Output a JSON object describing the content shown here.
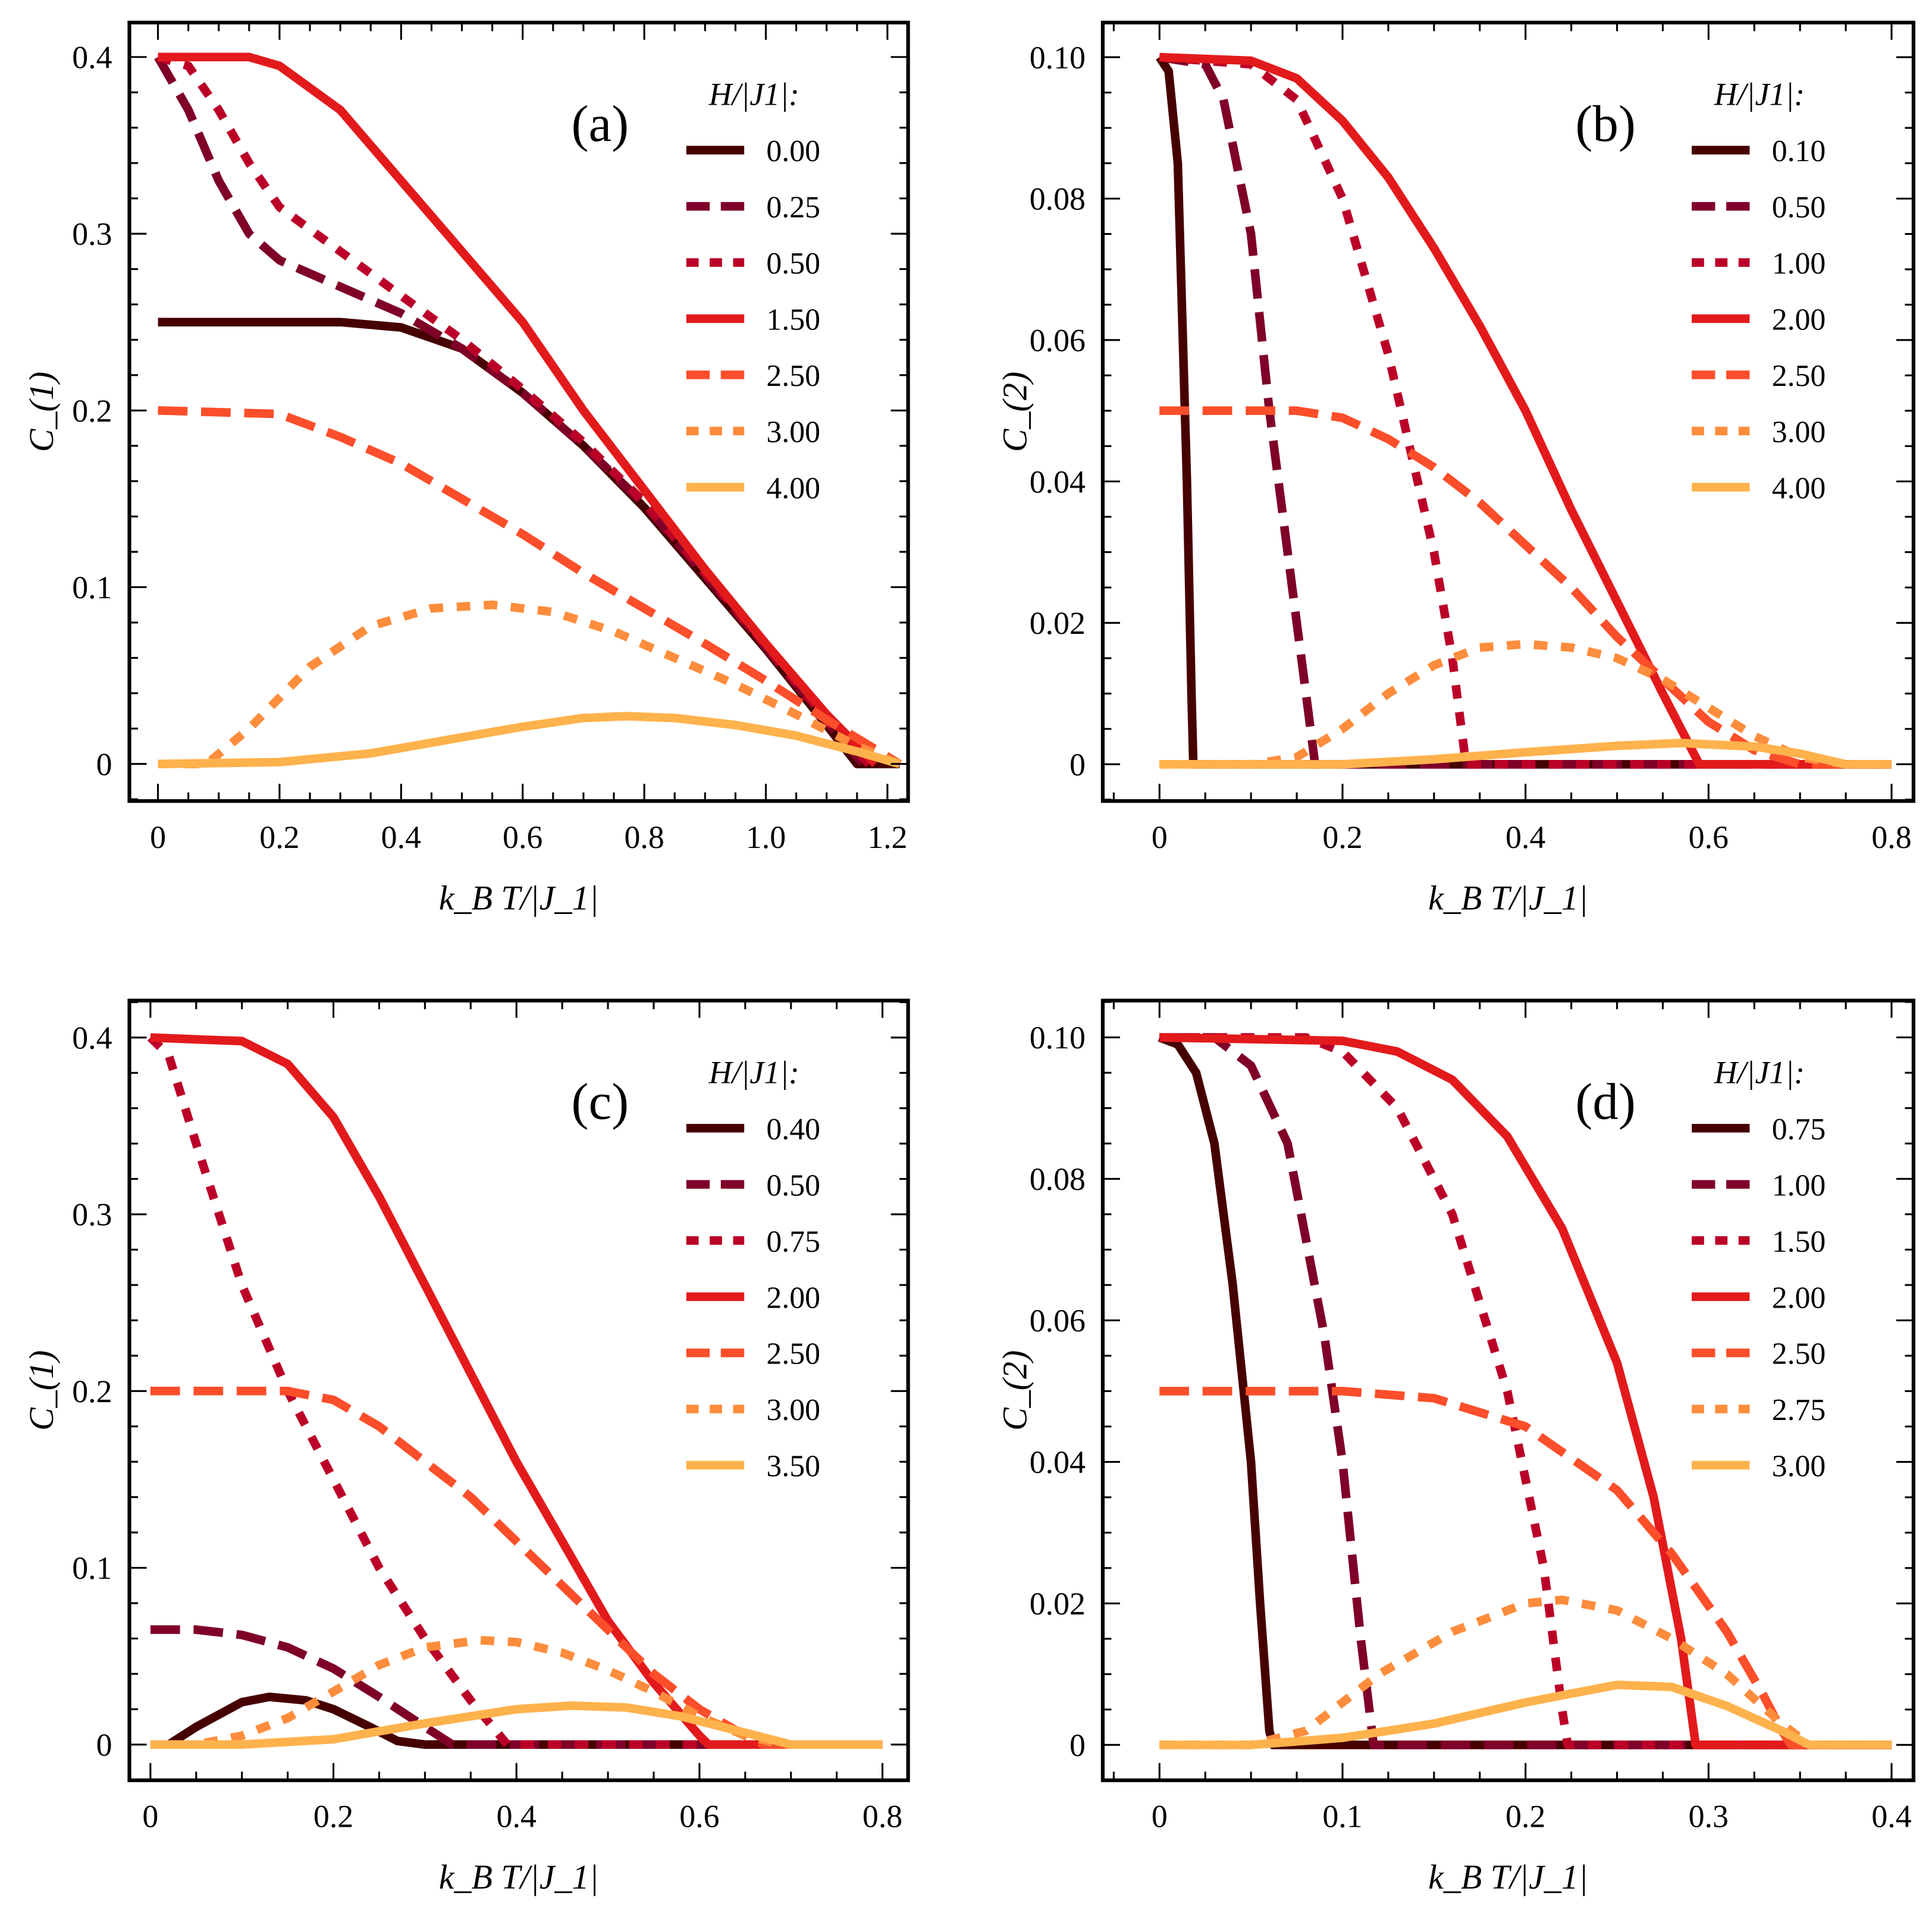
{
  "colors": {
    "axis": "#000000"
  },
  "chart_data": [
    {
      "type": "line",
      "panel_label": "(a)",
      "xlabel": "k_B T/|J_1|",
      "ylabel": "C_(1)",
      "xlim": [
        -0.047,
        1.234
      ],
      "ylim": [
        -0.021,
        0.4195
      ],
      "xticks": [
        0,
        0.2,
        0.4,
        0.6,
        0.8,
        1.0,
        1.2
      ],
      "xtick_labels": [
        "0",
        "0.2",
        "0.4",
        "0.6",
        "0.8",
        "1.0",
        "1.2"
      ],
      "xminor": 0.05,
      "yticks": [
        0,
        0.1,
        0.2,
        0.3,
        0.4
      ],
      "ytick_labels": [
        "0",
        "0.1",
        "0.2",
        "0.3",
        "0.4"
      ],
      "yminor": 0.02,
      "legend_title": "H/|J1|:",
      "legend_position": "top-right",
      "series": [
        {
          "name": "0.00",
          "color": "#460000",
          "style": "solid",
          "x": [
            0,
            0.3,
            0.4,
            0.5,
            0.6,
            0.7,
            0.8,
            0.9,
            1.0,
            1.1,
            1.15,
            1.22
          ],
          "y": [
            0.25,
            0.25,
            0.247,
            0.235,
            0.21,
            0.18,
            0.145,
            0.105,
            0.065,
            0.022,
            0,
            0
          ]
        },
        {
          "name": "0.25",
          "color": "#7f0028",
          "style": "dashed",
          "x": [
            0,
            0.05,
            0.1,
            0.15,
            0.2,
            0.3,
            0.4,
            0.5,
            0.6,
            0.7,
            0.8,
            0.9,
            1.0,
            1.1,
            1.16
          ],
          "y": [
            0.4,
            0.37,
            0.33,
            0.3,
            0.285,
            0.27,
            0.255,
            0.235,
            0.21,
            0.18,
            0.147,
            0.107,
            0.066,
            0.024,
            0
          ]
        },
        {
          "name": "0.50",
          "color": "#bb0028",
          "style": "dotted",
          "x": [
            0,
            0.05,
            0.1,
            0.15,
            0.2,
            0.3,
            0.4,
            0.5,
            0.6,
            0.7,
            0.8,
            0.9,
            1.0,
            1.1,
            1.17
          ],
          "y": [
            0.4,
            0.395,
            0.37,
            0.34,
            0.315,
            0.29,
            0.265,
            0.24,
            0.212,
            0.182,
            0.148,
            0.108,
            0.067,
            0.025,
            0
          ]
        },
        {
          "name": "1.50",
          "color": "#e31a1c",
          "style": "solid",
          "x": [
            0,
            0.15,
            0.2,
            0.3,
            0.4,
            0.5,
            0.6,
            0.7,
            0.8,
            0.9,
            1.0,
            1.1,
            1.18
          ],
          "y": [
            0.4,
            0.4,
            0.395,
            0.37,
            0.33,
            0.29,
            0.25,
            0.2,
            0.155,
            0.11,
            0.068,
            0.028,
            0
          ]
        },
        {
          "name": "2.50",
          "color": "#fc4e2a",
          "style": "dashed",
          "x": [
            0,
            0.2,
            0.3,
            0.4,
            0.5,
            0.6,
            0.7,
            0.8,
            0.9,
            1.0,
            1.1,
            1.22
          ],
          "y": [
            0.2,
            0.198,
            0.185,
            0.17,
            0.15,
            0.13,
            0.108,
            0.088,
            0.068,
            0.047,
            0.025,
            0
          ]
        },
        {
          "name": "3.00",
          "color": "#fd8d3c",
          "style": "dotted",
          "x": [
            0,
            0.08,
            0.15,
            0.25,
            0.35,
            0.45,
            0.55,
            0.65,
            0.75,
            0.85,
            0.95,
            1.05,
            1.15,
            1.22
          ],
          "y": [
            0,
            0,
            0.02,
            0.055,
            0.078,
            0.088,
            0.09,
            0.086,
            0.075,
            0.06,
            0.045,
            0.028,
            0.01,
            0
          ]
        },
        {
          "name": "4.00",
          "color": "#feb24c",
          "style": "solid",
          "x": [
            0,
            0.2,
            0.35,
            0.5,
            0.6,
            0.7,
            0.77,
            0.85,
            0.95,
            1.05,
            1.15,
            1.22
          ],
          "y": [
            0,
            0.001,
            0.006,
            0.015,
            0.021,
            0.026,
            0.027,
            0.026,
            0.022,
            0.016,
            0.007,
            0
          ]
        }
      ]
    },
    {
      "type": "line",
      "panel_label": "(b)",
      "xlabel": "k_B T/|J_1|",
      "ylabel": "C_(2)",
      "xlim": [
        -0.062,
        0.824
      ],
      "ylim": [
        -0.0052,
        0.1049
      ],
      "xticks": [
        0,
        0.2,
        0.4,
        0.6,
        0.8
      ],
      "xtick_labels": [
        "0",
        "0.2",
        "0.4",
        "0.6",
        "0.8"
      ],
      "xminor": 0.05,
      "yticks": [
        0,
        0.02,
        0.04,
        0.06,
        0.08,
        0.1
      ],
      "ytick_labels": [
        "0",
        "0.02",
        "0.04",
        "0.06",
        "0.08",
        "0.10"
      ],
      "yminor": 0.005,
      "legend_title": "H/|J1|:",
      "legend_position": "top-right",
      "series": [
        {
          "name": "0.10",
          "color": "#460000",
          "style": "solid",
          "x": [
            0,
            0.01,
            0.02,
            0.03,
            0.035,
            0.037,
            0.8
          ],
          "y": [
            0.1,
            0.098,
            0.085,
            0.04,
            0.01,
            0,
            0
          ]
        },
        {
          "name": "0.50",
          "color": "#7f0028",
          "style": "dashed",
          "x": [
            0,
            0.05,
            0.07,
            0.1,
            0.12,
            0.14,
            0.16,
            0.17,
            0.8
          ],
          "y": [
            0.1,
            0.099,
            0.094,
            0.075,
            0.05,
            0.03,
            0.01,
            0,
            0
          ]
        },
        {
          "name": "1.00",
          "color": "#bb0028",
          "style": "dotted",
          "x": [
            0,
            0.1,
            0.15,
            0.2,
            0.25,
            0.3,
            0.32,
            0.335,
            0.8
          ],
          "y": [
            0.1,
            0.099,
            0.094,
            0.08,
            0.058,
            0.03,
            0.015,
            0,
            0
          ]
        },
        {
          "name": "2.00",
          "color": "#e31a1c",
          "style": "solid",
          "x": [
            0,
            0.1,
            0.15,
            0.2,
            0.25,
            0.3,
            0.35,
            0.4,
            0.45,
            0.5,
            0.55,
            0.59,
            0.8
          ],
          "y": [
            0.1,
            0.0995,
            0.097,
            0.091,
            0.083,
            0.073,
            0.062,
            0.05,
            0.036,
            0.023,
            0.01,
            0,
            0
          ]
        },
        {
          "name": "2.50",
          "color": "#fc4e2a",
          "style": "dashed",
          "x": [
            0,
            0.15,
            0.2,
            0.25,
            0.3,
            0.35,
            0.4,
            0.45,
            0.5,
            0.55,
            0.6,
            0.65,
            0.7,
            0.8
          ],
          "y": [
            0.05,
            0.05,
            0.049,
            0.046,
            0.042,
            0.037,
            0.031,
            0.025,
            0.018,
            0.012,
            0.006,
            0.002,
            0,
            0
          ]
        },
        {
          "name": "3.00",
          "color": "#fd8d3c",
          "style": "dotted",
          "x": [
            0,
            0.1,
            0.15,
            0.2,
            0.25,
            0.3,
            0.35,
            0.4,
            0.45,
            0.5,
            0.55,
            0.6,
            0.65,
            0.7,
            0.75,
            0.8
          ],
          "y": [
            0,
            0,
            0.001,
            0.005,
            0.01,
            0.014,
            0.0165,
            0.017,
            0.0165,
            0.015,
            0.012,
            0.008,
            0.004,
            0.001,
            0,
            0
          ]
        },
        {
          "name": "4.00",
          "color": "#feb24c",
          "style": "solid",
          "x": [
            0,
            0.2,
            0.3,
            0.4,
            0.5,
            0.57,
            0.65,
            0.7,
            0.75,
            0.8
          ],
          "y": [
            0,
            0,
            0.0007,
            0.0017,
            0.0026,
            0.003,
            0.0025,
            0.0015,
            0,
            0
          ]
        }
      ]
    },
    {
      "type": "line",
      "panel_label": "(c)",
      "xlabel": "k_B T/|J_1|",
      "ylabel": "C_(1)",
      "xlim": [
        -0.023,
        0.828
      ],
      "ylim": [
        -0.0202,
        0.4209
      ],
      "xticks": [
        0,
        0.2,
        0.4,
        0.6,
        0.8
      ],
      "xtick_labels": [
        "0",
        "0.2",
        "0.4",
        "0.6",
        "0.8"
      ],
      "xminor": 0.05,
      "yticks": [
        0,
        0.1,
        0.2,
        0.3,
        0.4
      ],
      "ytick_labels": [
        "0",
        "0.1",
        "0.2",
        "0.3",
        "0.4"
      ],
      "yminor": 0.02,
      "legend_title": "H/|J1|:",
      "legend_position": "top-right",
      "series": [
        {
          "name": "0.40",
          "color": "#460000",
          "style": "solid",
          "x": [
            0,
            0.02,
            0.05,
            0.1,
            0.13,
            0.17,
            0.2,
            0.24,
            0.27,
            0.3,
            0.8
          ],
          "y": [
            0,
            0,
            0.01,
            0.024,
            0.027,
            0.025,
            0.02,
            0.01,
            0.002,
            0,
            0
          ]
        },
        {
          "name": "0.50",
          "color": "#7f0028",
          "style": "dashed",
          "x": [
            0,
            0.05,
            0.1,
            0.15,
            0.2,
            0.25,
            0.3,
            0.33,
            0.8
          ],
          "y": [
            0.065,
            0.065,
            0.062,
            0.055,
            0.043,
            0.027,
            0.01,
            0,
            0
          ]
        },
        {
          "name": "0.75",
          "color": "#bb0028",
          "style": "dotted",
          "x": [
            0,
            0.02,
            0.05,
            0.1,
            0.15,
            0.2,
            0.25,
            0.3,
            0.35,
            0.39,
            0.8
          ],
          "y": [
            0.4,
            0.39,
            0.34,
            0.26,
            0.2,
            0.15,
            0.1,
            0.06,
            0.025,
            0,
            0
          ]
        },
        {
          "name": "2.00",
          "color": "#e31a1c",
          "style": "solid",
          "x": [
            0,
            0.1,
            0.15,
            0.2,
            0.25,
            0.3,
            0.35,
            0.4,
            0.45,
            0.5,
            0.55,
            0.6,
            0.61,
            0.8
          ],
          "y": [
            0.4,
            0.398,
            0.385,
            0.355,
            0.31,
            0.26,
            0.21,
            0.16,
            0.115,
            0.07,
            0.035,
            0.005,
            0,
            0
          ]
        },
        {
          "name": "2.50",
          "color": "#fc4e2a",
          "style": "dashed",
          "x": [
            0,
            0.15,
            0.2,
            0.25,
            0.3,
            0.35,
            0.4,
            0.45,
            0.5,
            0.55,
            0.6,
            0.65,
            0.67,
            0.8
          ],
          "y": [
            0.2,
            0.2,
            0.195,
            0.18,
            0.16,
            0.14,
            0.115,
            0.09,
            0.065,
            0.04,
            0.02,
            0.005,
            0,
            0
          ]
        },
        {
          "name": "3.00",
          "color": "#fd8d3c",
          "style": "dotted",
          "x": [
            0,
            0.05,
            0.1,
            0.15,
            0.2,
            0.25,
            0.3,
            0.36,
            0.4,
            0.45,
            0.5,
            0.55,
            0.6,
            0.65,
            0.69,
            0.8
          ],
          "y": [
            0,
            0,
            0.005,
            0.015,
            0.03,
            0.045,
            0.055,
            0.059,
            0.058,
            0.052,
            0.042,
            0.03,
            0.016,
            0.005,
            0,
            0
          ]
        },
        {
          "name": "3.50",
          "color": "#feb24c",
          "style": "solid",
          "x": [
            0,
            0.1,
            0.2,
            0.3,
            0.4,
            0.46,
            0.52,
            0.58,
            0.64,
            0.7,
            0.8
          ],
          "y": [
            0,
            0,
            0.003,
            0.012,
            0.02,
            0.022,
            0.021,
            0.016,
            0.008,
            0,
            0
          ]
        }
      ]
    },
    {
      "type": "line",
      "panel_label": "(d)",
      "xlabel": "k_B T/|J_1|",
      "ylabel": "C_(2)",
      "xlim": [
        -0.031,
        0.412
      ],
      "ylim": [
        -0.005,
        0.1052
      ],
      "xticks": [
        0,
        0.1,
        0.2,
        0.3,
        0.4
      ],
      "xtick_labels": [
        "0",
        "0.1",
        "0.2",
        "0.3",
        "0.4"
      ],
      "xminor": 0.025,
      "yticks": [
        0,
        0.02,
        0.04,
        0.06,
        0.08,
        0.1
      ],
      "ytick_labels": [
        "0",
        "0.02",
        "0.04",
        "0.06",
        "0.08",
        "0.10"
      ],
      "yminor": 0.005,
      "legend_title": "H/|J1|:",
      "legend_position": "top-right",
      "series": [
        {
          "name": "0.75",
          "color": "#460000",
          "style": "solid",
          "x": [
            0,
            0.01,
            0.02,
            0.03,
            0.04,
            0.05,
            0.055,
            0.06,
            0.062,
            0.4
          ],
          "y": [
            0.1,
            0.099,
            0.095,
            0.085,
            0.065,
            0.04,
            0.02,
            0.002,
            0,
            0
          ]
        },
        {
          "name": "1.00",
          "color": "#7f0028",
          "style": "dashed",
          "x": [
            0,
            0.03,
            0.05,
            0.07,
            0.09,
            0.1,
            0.11,
            0.117,
            0.4
          ],
          "y": [
            0.1,
            0.1,
            0.096,
            0.085,
            0.058,
            0.04,
            0.015,
            0,
            0
          ]
        },
        {
          "name": "1.50",
          "color": "#bb0028",
          "style": "dotted",
          "x": [
            0,
            0.08,
            0.1,
            0.13,
            0.16,
            0.19,
            0.21,
            0.22,
            0.223,
            0.4
          ],
          "y": [
            0.1,
            0.1,
            0.098,
            0.09,
            0.075,
            0.05,
            0.025,
            0.005,
            0,
            0
          ]
        },
        {
          "name": "2.00",
          "color": "#e31a1c",
          "style": "solid",
          "x": [
            0,
            0.1,
            0.13,
            0.16,
            0.19,
            0.22,
            0.25,
            0.27,
            0.285,
            0.293,
            0.4
          ],
          "y": [
            0.1,
            0.0995,
            0.098,
            0.094,
            0.086,
            0.073,
            0.054,
            0.035,
            0.015,
            0,
            0
          ]
        },
        {
          "name": "2.50",
          "color": "#fc4e2a",
          "style": "dashed",
          "x": [
            0,
            0.1,
            0.15,
            0.2,
            0.25,
            0.28,
            0.31,
            0.33,
            0.34,
            0.345,
            0.4
          ],
          "y": [
            0.05,
            0.05,
            0.049,
            0.045,
            0.036,
            0.027,
            0.016,
            0.007,
            0.002,
            0,
            0
          ]
        },
        {
          "name": "2.75",
          "color": "#fd8d3c",
          "style": "dotted",
          "x": [
            0,
            0.05,
            0.08,
            0.12,
            0.16,
            0.2,
            0.22,
            0.25,
            0.28,
            0.31,
            0.34,
            0.355,
            0.4
          ],
          "y": [
            0,
            0,
            0.002,
            0.01,
            0.016,
            0.02,
            0.0205,
            0.019,
            0.015,
            0.01,
            0.003,
            0,
            0
          ]
        },
        {
          "name": "3.00",
          "color": "#feb24c",
          "style": "solid",
          "x": [
            0,
            0.05,
            0.1,
            0.15,
            0.2,
            0.25,
            0.28,
            0.31,
            0.34,
            0.355,
            0.4
          ],
          "y": [
            0,
            0,
            0.001,
            0.003,
            0.006,
            0.0085,
            0.0082,
            0.0055,
            0.002,
            0,
            0
          ]
        }
      ]
    }
  ]
}
